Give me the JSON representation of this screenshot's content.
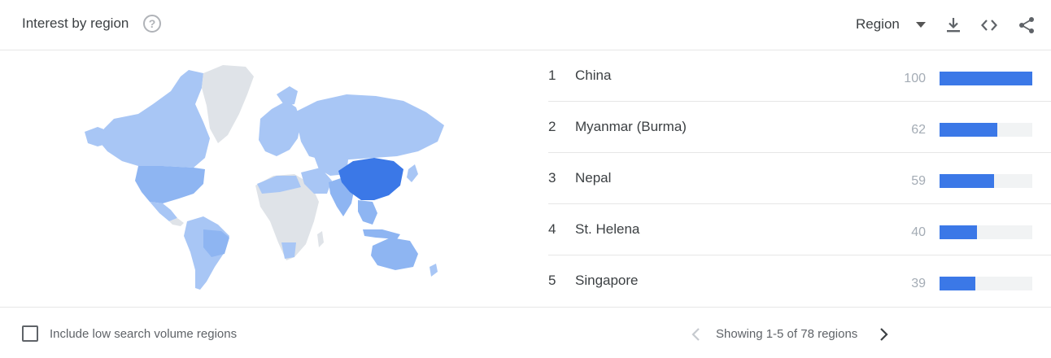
{
  "header": {
    "title": "Interest by region",
    "help_icon": "help-circle-icon",
    "region_select": {
      "selected": "Region",
      "icon": "caret-down-icon"
    },
    "actions": [
      "download-icon",
      "embed-code-icon",
      "share-icon"
    ]
  },
  "colors": {
    "bar": "#3b78e7",
    "bar_track": "#f1f3f4",
    "map_top": "#3b78e7",
    "map_mid": "#8eb5f2",
    "map_low": "#a8c6f5",
    "map_none": "#dfe3e8"
  },
  "regions": [
    {
      "rank": "1",
      "name": "China",
      "score": "100",
      "value": 100
    },
    {
      "rank": "2",
      "name": "Myanmar (Burma)",
      "score": "62",
      "value": 62
    },
    {
      "rank": "3",
      "name": "Nepal",
      "score": "59",
      "value": 59
    },
    {
      "rank": "4",
      "name": "St. Helena",
      "score": "40",
      "value": 40
    },
    {
      "rank": "5",
      "name": "Singapore",
      "score": "39",
      "value": 39
    }
  ],
  "footer": {
    "checkbox_label": "Include low search volume regions",
    "checkbox_checked": false,
    "pagination": "Showing 1-5 of 78 regions"
  }
}
